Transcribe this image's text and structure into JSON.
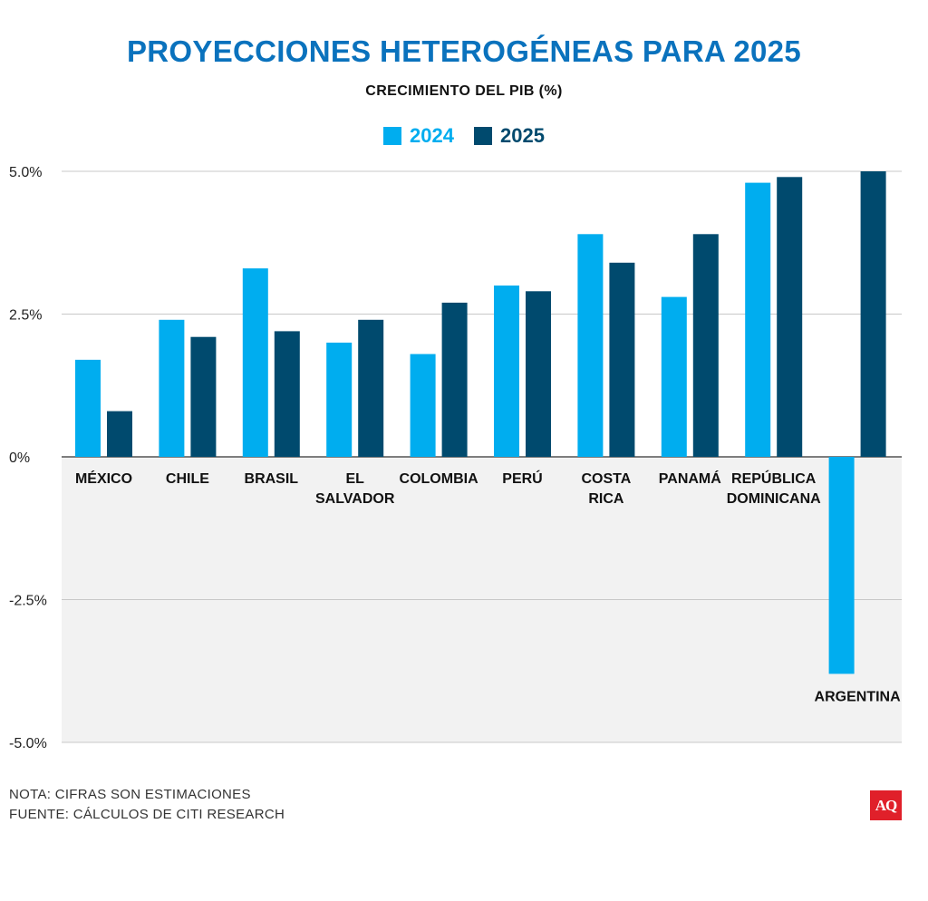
{
  "title": "PROYECCIONES HETEROGÉNEAS PARA 2025",
  "subtitle": "CRECIMIENTO DEL PIB (%)",
  "legend": [
    {
      "label": "2024",
      "color": "#00adef"
    },
    {
      "label": "2025",
      "color": "#004a6e"
    }
  ],
  "notes": {
    "line1": "NOTA: CIFRAS SON ESTIMACIONES",
    "line2": "FUENTE: CÁLCULOS DE CITI RESEARCH"
  },
  "logo": "AQ",
  "chart_data": {
    "type": "bar",
    "title": "PROYECCIONES HETEROGÉNEAS PARA 2025",
    "subtitle": "CRECIMIENTO DEL PIB (%)",
    "categories": [
      [
        "MÉXICO"
      ],
      [
        "CHILE"
      ],
      [
        "BRASIL"
      ],
      [
        "EL",
        "SALVADOR"
      ],
      [
        "COLOMBIA"
      ],
      [
        "PERÚ"
      ],
      [
        "COSTA",
        "RICA"
      ],
      [
        "PANAMÁ"
      ],
      [
        "REPÚBLICA",
        "DOMINICANA"
      ],
      [
        "ARGENTINA"
      ]
    ],
    "series": [
      {
        "name": "2024",
        "color": "#00adef",
        "values": [
          1.7,
          2.4,
          3.3,
          2.0,
          1.8,
          3.0,
          3.9,
          2.8,
          4.8,
          -3.8
        ]
      },
      {
        "name": "2025",
        "color": "#004a6e",
        "values": [
          0.8,
          2.1,
          2.2,
          2.4,
          2.7,
          2.9,
          3.4,
          3.9,
          4.9,
          5.0
        ]
      }
    ],
    "ylim": [
      -5.0,
      5.0
    ],
    "yticks": [
      5.0,
      2.5,
      0,
      -2.5,
      -5.0
    ],
    "ytick_labels": [
      "5.0%",
      "2.5%",
      "0%",
      "-2.5%",
      "-5.0%"
    ],
    "grid": true,
    "negative_region_shaded": true,
    "legend_position": "top-center"
  }
}
